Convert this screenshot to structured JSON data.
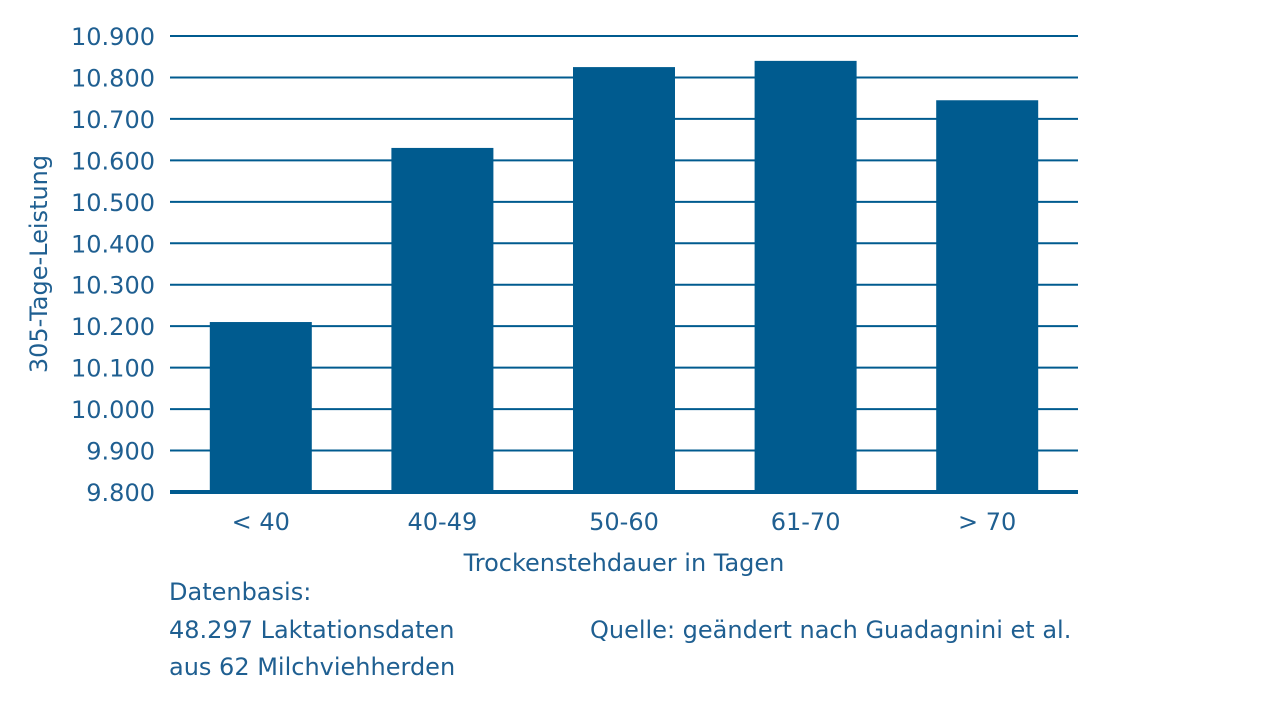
{
  "colors": {
    "bar": "#005b8f",
    "text": "#1f5f91",
    "grid": "#005b8f"
  },
  "chart_data": {
    "type": "bar",
    "categories": [
      "< 40",
      "40-49",
      "50-60",
      "61-70",
      "> 70"
    ],
    "values": [
      10210,
      10630,
      10825,
      10840,
      10745
    ],
    "y_ticks": [
      "9.800",
      "9.900",
      "10.000",
      "10.100",
      "10.200",
      "10.300",
      "10.400",
      "10.500",
      "10.600",
      "10.700",
      "10.800",
      "10.900"
    ],
    "ylim": [
      9800,
      10900
    ],
    "ylabel": "305-Tage-Leistung",
    "xlabel": "Trockenstehdauer in Tagen",
    "grid": true
  },
  "notes": {
    "datenbasis_title": "Datenbasis:",
    "datenbasis_line1": "48.297 Laktationsdaten",
    "datenbasis_line2": "aus 62 Milchviehherden",
    "source": "Quelle: geändert nach Guadagnini et al."
  }
}
